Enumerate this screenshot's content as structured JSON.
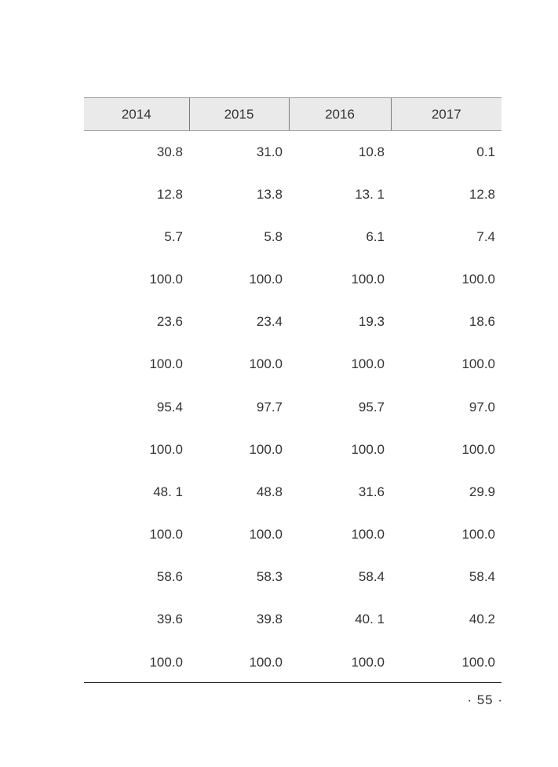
{
  "table": {
    "headers": [
      "2014",
      "2015",
      "2016",
      "2017"
    ],
    "rows": [
      [
        "30.8",
        "31.0",
        "10.8",
        "0.1"
      ],
      [
        "12.8",
        "13.8",
        "13. 1",
        "12.8"
      ],
      [
        "5.7",
        "5.8",
        "6.1",
        "7.4"
      ],
      [
        "100.0",
        "100.0",
        "100.0",
        "100.0"
      ],
      [
        "23.6",
        "23.4",
        "19.3",
        "18.6"
      ],
      [
        "100.0",
        "100.0",
        "100.0",
        "100.0"
      ],
      [
        "95.4",
        "97.7",
        "95.7",
        "97.0"
      ],
      [
        "100.0",
        "100.0",
        "100.0",
        "100.0"
      ],
      [
        "48. 1",
        "48.8",
        "31.6",
        "29.9"
      ],
      [
        "100.0",
        "100.0",
        "100.0",
        "100.0"
      ],
      [
        "58.6",
        "58.3",
        "58.4",
        "58.4"
      ],
      [
        "39.6",
        "39.8",
        "40. 1",
        "40.2"
      ],
      [
        "100.0",
        "100.0",
        "100.0",
        "100.0"
      ]
    ]
  },
  "footer": {
    "page_number": "· 55 ·"
  }
}
